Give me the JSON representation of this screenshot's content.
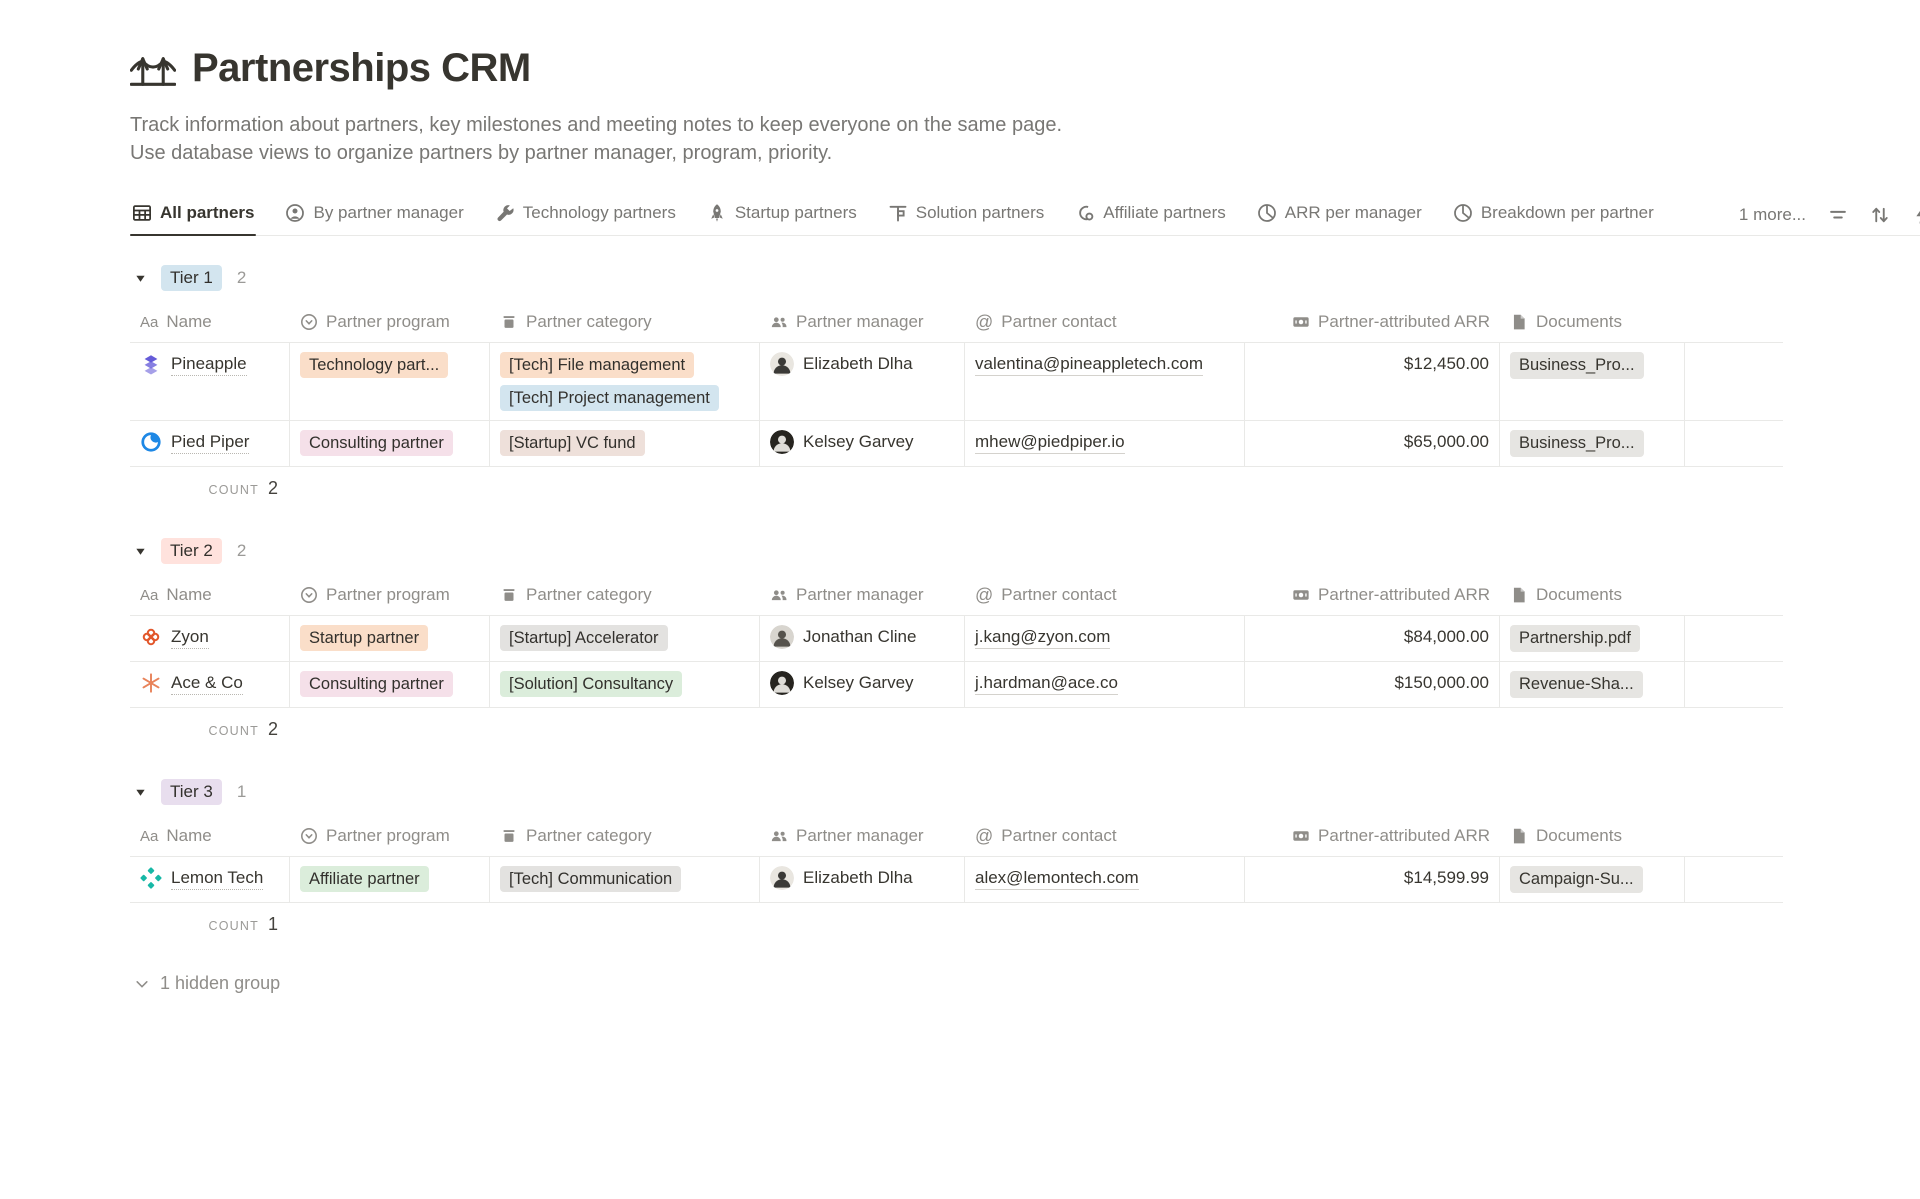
{
  "page": {
    "icon": "bridge-icon",
    "title": "Partnerships CRM",
    "description_line1": "Track information about partners, key milestones and meeting notes to keep everyone on the same page.",
    "description_line2": "Use database views to organize partners by partner manager, program, priority."
  },
  "toolbar": {
    "tabs": [
      {
        "label": "All partners",
        "icon": "table-icon",
        "active": true
      },
      {
        "label": "By partner manager",
        "icon": "person-icon",
        "active": false
      },
      {
        "label": "Technology partners",
        "icon": "wrench-icon",
        "active": false
      },
      {
        "label": "Startup partners",
        "icon": "rocket-icon",
        "active": false
      },
      {
        "label": "Solution partners",
        "icon": "board-icon",
        "active": false
      },
      {
        "label": "Affiliate partners",
        "icon": "affiliate-icon",
        "active": false
      },
      {
        "label": "ARR per manager",
        "icon": "pie-chart-icon",
        "active": false
      },
      {
        "label": "Breakdown per partner",
        "icon": "pie-chart-icon",
        "active": false
      }
    ],
    "more_label": "1 more...",
    "action_icons": [
      "filter-icon",
      "sort-icon",
      "flash-icon"
    ]
  },
  "icon_glyphs": {
    "aa-icon": "Aa",
    "at-icon": "@"
  },
  "columns": [
    {
      "label": "Name",
      "icon": "aa-icon"
    },
    {
      "label": "Partner program",
      "icon": "select-icon"
    },
    {
      "label": "Partner category",
      "icon": "category-icon"
    },
    {
      "label": "Partner manager",
      "icon": "people-icon"
    },
    {
      "label": "Partner contact",
      "icon": "at-icon"
    },
    {
      "label": "Partner-attributed ARR",
      "icon": "banknote-icon"
    },
    {
      "label": "Documents",
      "icon": "document-icon"
    }
  ],
  "groups": [
    {
      "name": "Tier 1",
      "count": "2",
      "badge_bg": "#d3e5ef",
      "count_label": "COUNT",
      "count_value": "2",
      "rows": [
        {
          "name": "Pineapple",
          "logo": "pineapple-logo",
          "program": {
            "label": "Technology part...",
            "bg": "#fadec9"
          },
          "categories": [
            {
              "label": "[Tech] File management",
              "bg": "#fadec9"
            },
            {
              "label": "[Tech] Project management",
              "bg": "#d3e5ef"
            }
          ],
          "manager": {
            "name": "Elizabeth Dlha",
            "avatar": "light"
          },
          "contact": "valentina@pineappletech.com",
          "arr": "$12,450.00",
          "document": "Business_Pro..."
        },
        {
          "name": "Pied Piper",
          "logo": "piedpiper-logo",
          "program": {
            "label": "Consulting partner",
            "bg": "#f5e0e9"
          },
          "categories": [
            {
              "label": "[Startup] VC fund",
              "bg": "#eee0da"
            }
          ],
          "manager": {
            "name": "Kelsey Garvey",
            "avatar": "dark"
          },
          "contact": "mhew@piedpiper.io",
          "arr": "$65,000.00",
          "document": "Business_Pro..."
        }
      ]
    },
    {
      "name": "Tier 2",
      "count": "2",
      "badge_bg": "#ffe2dd",
      "count_label": "COUNT",
      "count_value": "2",
      "rows": [
        {
          "name": "Zyon",
          "logo": "zyon-logo",
          "program": {
            "label": "Startup partner",
            "bg": "#fadec9"
          },
          "categories": [
            {
              "label": "[Startup] Accelerator",
              "bg": "#e3e2e0"
            }
          ],
          "manager": {
            "name": "Jonathan Cline",
            "avatar": "light2"
          },
          "contact": "j.kang@zyon.com",
          "arr": "$84,000.00",
          "document": "Partnership.pdf"
        },
        {
          "name": "Ace & Co",
          "logo": "ace-logo",
          "program": {
            "label": "Consulting partner",
            "bg": "#f5e0e9"
          },
          "categories": [
            {
              "label": "[Solution] Consultancy",
              "bg": "#dbeddb"
            }
          ],
          "manager": {
            "name": "Kelsey Garvey",
            "avatar": "dark"
          },
          "contact": "j.hardman@ace.co",
          "arr": "$150,000.00",
          "document": "Revenue-Sha..."
        }
      ]
    },
    {
      "name": "Tier 3",
      "count": "1",
      "badge_bg": "#e8deee",
      "count_label": "COUNT",
      "count_value": "1",
      "rows": [
        {
          "name": "Lemon Tech",
          "logo": "lemontech-logo",
          "program": {
            "label": "Affiliate partner",
            "bg": "#dbeddb"
          },
          "categories": [
            {
              "label": "[Tech] Communication",
              "bg": "#e3e2e0"
            }
          ],
          "manager": {
            "name": "Elizabeth Dlha",
            "avatar": "light"
          },
          "contact": "alex@lemontech.com",
          "arr": "$14,599.99",
          "document": "Campaign-Su..."
        }
      ]
    }
  ],
  "hidden_group": {
    "label": "1 hidden group"
  },
  "theme": {
    "text_dark": "#37352f",
    "text_gray": "#787774",
    "border": "#e9e9e7",
    "doc_tag_bg": "#e6e5e2",
    "tier1_badge": "#d3e5ef",
    "tier2_badge": "#ffe2dd",
    "tier3_badge": "#e8deee"
  }
}
